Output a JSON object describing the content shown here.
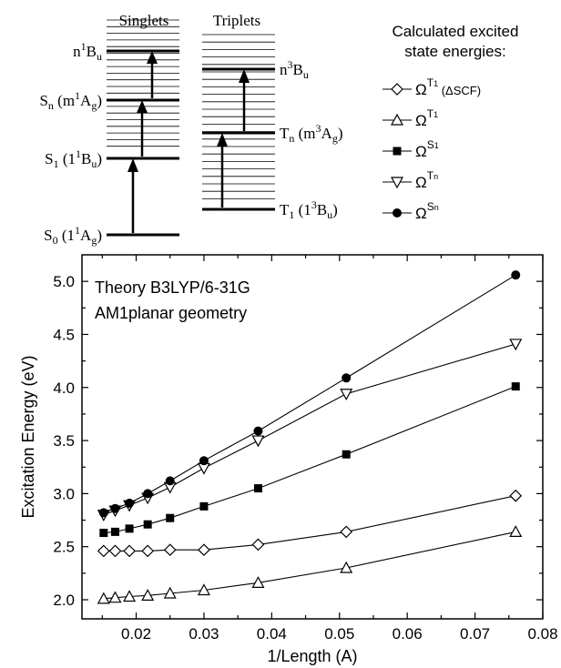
{
  "diagram": {
    "singlets": {
      "heading": "Singlets",
      "levels": [
        {
          "id": "s0",
          "main": "S",
          "sub1": "0",
          "mid": " (1",
          "sup": "1",
          "base": "A",
          "sub2": "g",
          "end": ")"
        },
        {
          "id": "s1",
          "main": "S",
          "sub1": "1",
          "mid": " (1",
          "sup": "1",
          "base": "B",
          "sub2": "u",
          "end": ")"
        },
        {
          "id": "sn",
          "main": "S",
          "sub1": "n",
          "mid": " (m",
          "sup": "1",
          "base": "A",
          "sub2": "g",
          "end": ")"
        },
        {
          "id": "n1bu",
          "main": "n",
          "sub1": "",
          "mid": "",
          "sup": "1",
          "base": "B",
          "sub2": "u",
          "end": ""
        }
      ]
    },
    "triplets": {
      "heading": "Triplets",
      "levels": [
        {
          "id": "t1",
          "main": "T",
          "sub1": "1",
          "mid": " (1",
          "sup": "3",
          "base": "B",
          "sub2": "u",
          "end": ")"
        },
        {
          "id": "tn",
          "main": "T",
          "sub1": "n",
          "mid": " (m",
          "sup": "3",
          "base": "A",
          "sub2": "g",
          "end": ")"
        },
        {
          "id": "n3bu",
          "main": "n",
          "sub1": "",
          "mid": "",
          "sup": "3",
          "base": "B",
          "sub2": "u",
          "end": ""
        }
      ]
    }
  },
  "legend": {
    "title_line1": "Calculated excited",
    "title_line2": "state  energies:",
    "items": [
      {
        "id": "t1-dscf",
        "marker": "diamond-open",
        "omega": "Ω",
        "sup": "T",
        "supsub": "1",
        "note": " (ΔSCF)"
      },
      {
        "id": "t1",
        "marker": "triangle-up-open",
        "omega": "Ω",
        "sup": "T",
        "supsub": "1",
        "note": ""
      },
      {
        "id": "s1",
        "marker": "square-filled",
        "omega": "Ω",
        "sup": "S",
        "supsub": "1",
        "note": ""
      },
      {
        "id": "tn",
        "marker": "triangle-down-open",
        "omega": "Ω",
        "sup": "T",
        "supsub": "n",
        "note": ""
      },
      {
        "id": "sn",
        "marker": "circle-filled",
        "omega": "Ω",
        "sup": "S",
        "supsub": "n",
        "note": ""
      }
    ]
  },
  "chart_data": {
    "type": "line",
    "xlabel": "1/Length (A)",
    "ylabel": "Excitation Energy (eV)",
    "annotation_line1": "Theory B3LYP/6-31G",
    "annotation_line2": "AM1planar geometry",
    "xlim": [
      0.012,
      0.08
    ],
    "ylim": [
      1.82,
      5.25
    ],
    "xticks": [
      0.02,
      0.03,
      0.04,
      0.05,
      0.06,
      0.07,
      0.08
    ],
    "xtick_labels": [
      "0.02",
      "0.03",
      "0.04",
      "0.05",
      "0.06",
      "0.07",
      "0.08"
    ],
    "yticks": [
      2.0,
      2.5,
      3.0,
      3.5,
      4.0,
      4.5,
      5.0
    ],
    "ytick_labels": [
      "2.0",
      "2.5",
      "3.0",
      "3.5",
      "4.0",
      "4.5",
      "5.0"
    ],
    "series": [
      {
        "id": "t1-dscf",
        "marker": "diamond-open",
        "x": [
          0.0152,
          0.0169,
          0.019,
          0.0217,
          0.025,
          0.03,
          0.038,
          0.051,
          0.076
        ],
        "y": [
          2.46,
          2.46,
          2.46,
          2.46,
          2.47,
          2.47,
          2.52,
          2.64,
          2.98
        ]
      },
      {
        "id": "t1",
        "marker": "triangle-up-open",
        "x": [
          0.0152,
          0.0169,
          0.019,
          0.0217,
          0.025,
          0.03,
          0.038,
          0.051,
          0.076
        ],
        "y": [
          2.01,
          2.02,
          2.03,
          2.04,
          2.06,
          2.09,
          2.16,
          2.3,
          2.64
        ]
      },
      {
        "id": "s1",
        "marker": "square-filled",
        "x": [
          0.0152,
          0.0169,
          0.019,
          0.0217,
          0.025,
          0.03,
          0.038,
          0.051,
          0.076
        ],
        "y": [
          2.63,
          2.64,
          2.67,
          2.71,
          2.77,
          2.88,
          3.05,
          3.37,
          4.01
        ]
      },
      {
        "id": "tn",
        "marker": "triangle-down-open",
        "x": [
          0.0152,
          0.0169,
          0.019,
          0.0217,
          0.025,
          0.03,
          0.038,
          0.051,
          0.076
        ],
        "y": [
          2.8,
          2.84,
          2.89,
          2.96,
          3.06,
          3.24,
          3.5,
          3.94,
          4.41
        ]
      },
      {
        "id": "sn",
        "marker": "circle-filled",
        "x": [
          0.0152,
          0.0169,
          0.019,
          0.0217,
          0.025,
          0.03,
          0.038,
          0.051,
          0.076
        ],
        "y": [
          2.82,
          2.86,
          2.91,
          3.0,
          3.12,
          3.31,
          3.59,
          4.09,
          5.06
        ]
      }
    ]
  }
}
